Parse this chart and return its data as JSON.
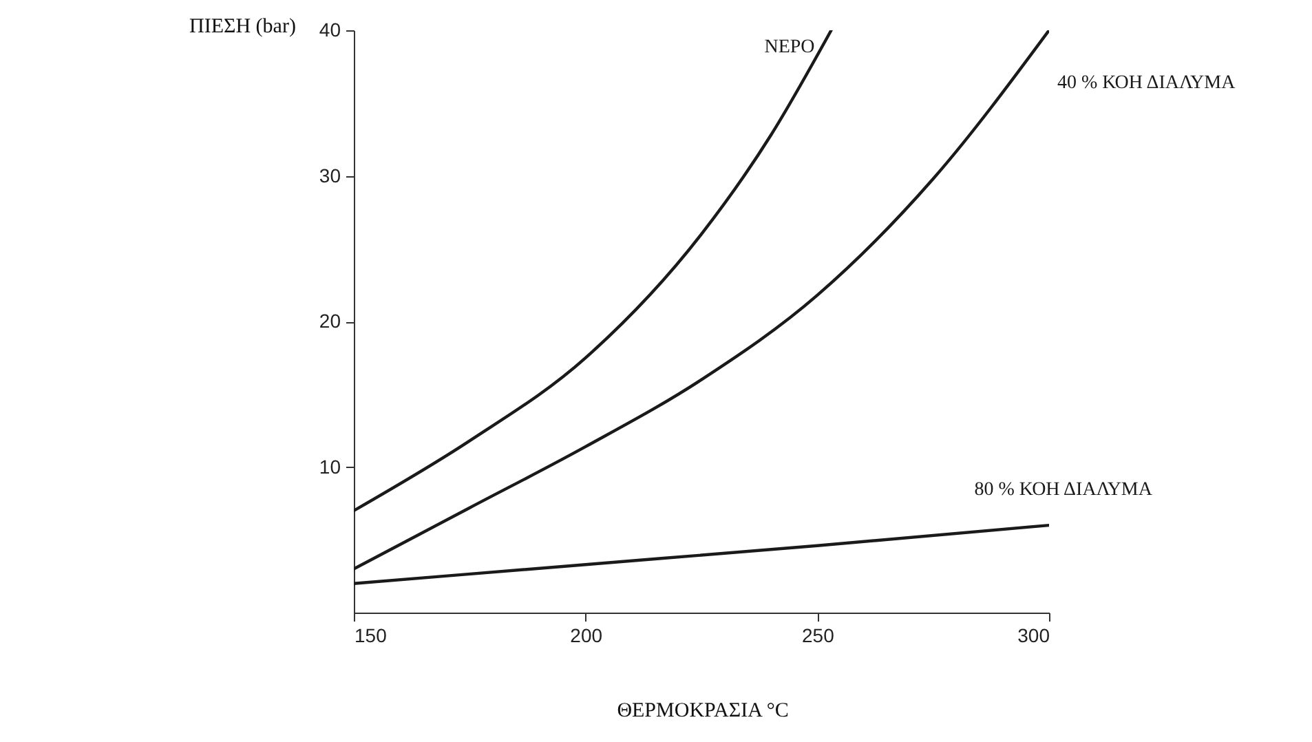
{
  "chart_data": {
    "type": "line",
    "xlabel": "ΘΕΡΜΟΚΡΑΣΙΑ °C",
    "ylabel": "ΠΙΕΣΗ (bar)",
    "xlim": [
      150,
      300
    ],
    "xticks": [
      150,
      200,
      250,
      300
    ],
    "ylim": [
      0,
      40
    ],
    "yticks": [
      10,
      20,
      30,
      40
    ],
    "grid": false,
    "marker": "none",
    "line_style": "solid",
    "series": [
      {
        "name": "ΝΕΡΟ",
        "color": "#1a1a1a",
        "x": [
          150,
          175,
          200,
          225,
          240,
          253
        ],
        "values": [
          7,
          11.8,
          17.5,
          26,
          32.8,
          40
        ]
      },
      {
        "name": "40 % ΚΟΗ ΔΙΑΛΥΜΑ",
        "color": "#1a1a1a",
        "x": [
          150,
          175,
          200,
          225,
          250,
          275,
          300
        ],
        "values": [
          3,
          7.2,
          11.4,
          16,
          21.8,
          29.8,
          40
        ]
      },
      {
        "name": "80 % ΚΟΗ ΔΙΑΛΥΜΑ",
        "color": "#1a1a1a",
        "x": [
          150,
          200,
          250,
          300
        ],
        "values": [
          2,
          3.3,
          4.6,
          6
        ]
      }
    ]
  }
}
